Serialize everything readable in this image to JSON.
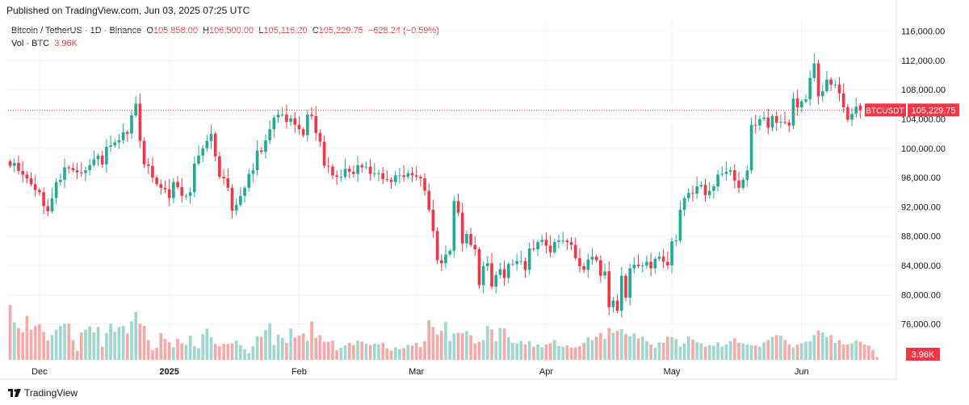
{
  "published": "Published on TradingView.com, Jun 03, 2025 07:25 UTC",
  "legend": {
    "symbol": "Bitcoin / TetherUS · 1D · Binance",
    "o_label": "O",
    "o_value": "105,858.00",
    "h_label": "H",
    "h_value": "106,500.00",
    "l_label": "L",
    "l_value": "105,116.20",
    "c_label": "C",
    "c_value": "105,229.75",
    "change": "−628.24 (−0.59%)",
    "vol_label": "Vol · BTC",
    "vol_value": "3.96K"
  },
  "brand": "TradingView",
  "colors": {
    "up": "#22ab94",
    "down": "#f23645",
    "vol_up": "#9fd7cf",
    "vol_down": "#f7a9a7",
    "grid": "#f0f3fa"
  },
  "chart_data": {
    "type": "candlestick",
    "symbol": "BTCUSDT",
    "interval": "1D",
    "start_date": "2024-11-24",
    "y_ticks": [
      76000,
      80000,
      84000,
      88000,
      92000,
      96000,
      100000,
      104000,
      108000,
      112000,
      116000
    ],
    "y_tick_labels": [
      "76,000.00",
      "80,000.00",
      "84,000.00",
      "88,000.00",
      "92,000.00",
      "96,000.00",
      "100,000.00",
      "104,000.00",
      "108,000.00",
      "112,000.00",
      "116,000.00"
    ],
    "ylim": [
      71000,
      117500
    ],
    "x_labels": [
      {
        "label": "Dec",
        "date": "2024-12-01"
      },
      {
        "label": "2025",
        "date": "2025-01-01"
      },
      {
        "label": "Feb",
        "date": "2025-02-01"
      },
      {
        "label": "Mar",
        "date": "2025-03-01"
      },
      {
        "label": "Apr",
        "date": "2025-04-01"
      },
      {
        "label": "May",
        "date": "2025-05-01"
      },
      {
        "label": "Jun",
        "date": "2025-06-01"
      }
    ],
    "last_price": 105229.75,
    "last_price_label": "105,229.75",
    "last_price_tag": "BTCUSDT",
    "volume_label": "3.96K",
    "closes": [
      97600,
      98000,
      96900,
      96400,
      95900,
      95100,
      94300,
      94000,
      92100,
      91400,
      93200,
      95400,
      95700,
      97400,
      97300,
      97000,
      96700,
      96600,
      97000,
      97700,
      98500,
      99000,
      97800,
      100200,
      100400,
      100800,
      101100,
      102200,
      102000,
      104500,
      106100,
      101000,
      97800,
      97600,
      96000,
      95100,
      94600,
      94400,
      93200,
      95400,
      94700,
      93500,
      93500,
      94000,
      97900,
      99000,
      100000,
      101000,
      102000,
      98900,
      96100,
      95900,
      94600,
      91500,
      92300,
      93500,
      94600,
      96500,
      97000,
      99700,
      99500,
      101100,
      102600,
      104200,
      104600,
      104600,
      103600,
      104100,
      103200,
      102600,
      101800,
      104600,
      104400,
      102100,
      100900,
      97600,
      97500,
      96300,
      96100,
      96100,
      97200,
      96800,
      96500,
      97700,
      97400,
      97500,
      96500,
      96600,
      96600,
      95800,
      95700,
      95400,
      96300,
      96300,
      96100,
      96600,
      96300,
      96100,
      95900,
      94200,
      91600,
      88700,
      84700,
      84300,
      85500,
      86000,
      92800,
      91200,
      87000,
      88300,
      86800,
      86200,
      81300,
      83900,
      84300,
      81100,
      82700,
      83500,
      82300,
      84200,
      84200,
      84600,
      84600,
      83400,
      86300,
      86200,
      87200,
      87500,
      86700,
      85800,
      87200,
      87400,
      87400,
      87200,
      86800,
      85000,
      83900,
      83400,
      84800,
      85200,
      84700,
      82600,
      83200,
      78300,
      79200,
      77800,
      82600,
      79600,
      83600,
      84100,
      83900,
      84000,
      84500,
      83600,
      84900,
      85200,
      84500,
      84000,
      87300,
      87400,
      91600,
      93200,
      93900,
      93800,
      94800,
      95000,
      93600,
      94200,
      94800,
      96400,
      96500,
      96800,
      97000,
      95600,
      94600,
      95700,
      97000,
      103200,
      103100,
      104000,
      104200,
      102800,
      104400,
      103500,
      103600,
      103500,
      103100,
      106800,
      105600,
      106400,
      106700,
      109600,
      111600,
      107100,
      107800,
      109400,
      108700,
      108700,
      107500,
      105600,
      103900,
      104700,
      105700,
      105200
    ],
    "opens": [
      98200,
      97600,
      98000,
      96900,
      96400,
      95900,
      95100,
      94300,
      94000,
      92100,
      91400,
      93200,
      95400,
      95700,
      97400,
      97300,
      97000,
      96700,
      96600,
      97000,
      97700,
      98500,
      99000,
      97800,
      100200,
      100400,
      100800,
      101100,
      102200,
      102000,
      104500,
      106100,
      101000,
      97800,
      97600,
      96000,
      95100,
      94600,
      94400,
      93200,
      95400,
      94700,
      93500,
      93500,
      94000,
      97900,
      99000,
      100000,
      101000,
      102000,
      98900,
      96100,
      95900,
      94600,
      91500,
      92300,
      93500,
      94600,
      96500,
      97000,
      99700,
      99500,
      101100,
      102600,
      104200,
      104600,
      104600,
      103600,
      104100,
      103200,
      102600,
      101800,
      104600,
      104400,
      102100,
      100900,
      97600,
      97500,
      96300,
      96100,
      96100,
      97200,
      96800,
      96500,
      97700,
      97400,
      97500,
      96500,
      96600,
      96600,
      95800,
      95700,
      95400,
      96300,
      96300,
      96100,
      96600,
      96300,
      96100,
      95900,
      94200,
      91600,
      88700,
      84700,
      84300,
      85500,
      86000,
      92800,
      91200,
      87000,
      88300,
      86800,
      86200,
      81300,
      83900,
      84300,
      81100,
      82700,
      83500,
      82300,
      84200,
      84200,
      84600,
      84600,
      83400,
      86300,
      86200,
      87200,
      87500,
      86700,
      85800,
      87200,
      87400,
      87400,
      87200,
      86800,
      85000,
      83900,
      83400,
      84800,
      85200,
      84700,
      82600,
      83200,
      78300,
      79200,
      77800,
      82600,
      79600,
      83600,
      84100,
      83900,
      84000,
      84500,
      83600,
      84900,
      85200,
      84500,
      84000,
      87300,
      87400,
      91600,
      93200,
      93900,
      93800,
      94800,
      95000,
      93600,
      94200,
      94800,
      96400,
      96500,
      96800,
      97000,
      95600,
      94600,
      95700,
      97000,
      103200,
      103100,
      104000,
      104200,
      102800,
      104400,
      103500,
      103600,
      103500,
      103100,
      106800,
      105600,
      106400,
      106700,
      109600,
      111600,
      107100,
      107800,
      109400,
      108700,
      108700,
      107500,
      105600,
      103900,
      104700,
      105858
    ],
    "volumes": [
      1.0,
      0.68,
      0.58,
      0.5,
      0.8,
      0.55,
      0.62,
      0.65,
      0.51,
      0.35,
      0.45,
      0.55,
      0.62,
      0.66,
      0.66,
      0.36,
      0.16,
      0.5,
      0.55,
      0.61,
      0.5,
      0.6,
      0.24,
      0.49,
      0.66,
      0.51,
      0.6,
      0.62,
      0.48,
      0.7,
      0.87,
      0.66,
      0.62,
      0.36,
      0.18,
      0.22,
      0.49,
      0.38,
      0.32,
      0.23,
      0.38,
      0.3,
      0.27,
      0.44,
      0.25,
      0.21,
      0.47,
      0.57,
      0.41,
      0.29,
      0.25,
      0.29,
      0.29,
      0.3,
      0.35,
      0.27,
      0.19,
      0.12,
      0.25,
      0.43,
      0.42,
      0.54,
      0.67,
      0.27,
      0.46,
      0.4,
      0.31,
      0.57,
      0.41,
      0.44,
      0.48,
      0.35,
      0.7,
      0.4,
      0.45,
      0.33,
      0.33,
      0.35,
      0.18,
      0.22,
      0.26,
      0.31,
      0.27,
      0.35,
      0.33,
      0.29,
      0.27,
      0.29,
      0.28,
      0.31,
      0.21,
      0.17,
      0.23,
      0.19,
      0.21,
      0.27,
      0.26,
      0.31,
      0.23,
      0.34,
      0.72,
      0.6,
      0.46,
      0.53,
      0.69,
      0.34,
      0.48,
      0.49,
      0.49,
      0.52,
      0.45,
      0.3,
      0.33,
      0.36,
      0.62,
      0.55,
      0.34,
      0.58,
      0.57,
      0.41,
      0.31,
      0.3,
      0.34,
      0.28,
      0.34,
      0.24,
      0.28,
      0.23,
      0.28,
      0.3,
      0.36,
      0.25,
      0.24,
      0.26,
      0.22,
      0.23,
      0.25,
      0.31,
      0.41,
      0.36,
      0.42,
      0.49,
      0.38,
      0.58,
      0.49,
      0.53,
      0.56,
      0.47,
      0.43,
      0.48,
      0.39,
      0.42,
      0.34,
      0.28,
      0.22,
      0.32,
      0.31,
      0.42,
      0.41,
      0.38,
      0.24,
      0.3,
      0.43,
      0.37,
      0.32,
      0.3,
      0.24,
      0.27,
      0.26,
      0.32,
      0.24,
      0.28,
      0.34,
      0.39,
      0.31,
      0.3,
      0.28,
      0.27,
      0.26,
      0.24,
      0.32,
      0.36,
      0.42,
      0.45,
      0.44,
      0.36,
      0.28,
      0.22,
      0.28,
      0.3,
      0.33,
      0.34,
      0.45,
      0.53,
      0.5,
      0.42,
      0.45,
      0.31,
      0.36,
      0.28,
      0.28,
      0.3,
      0.36,
      0.33,
      0.28,
      0.26,
      0.18,
      0.05
    ]
  }
}
